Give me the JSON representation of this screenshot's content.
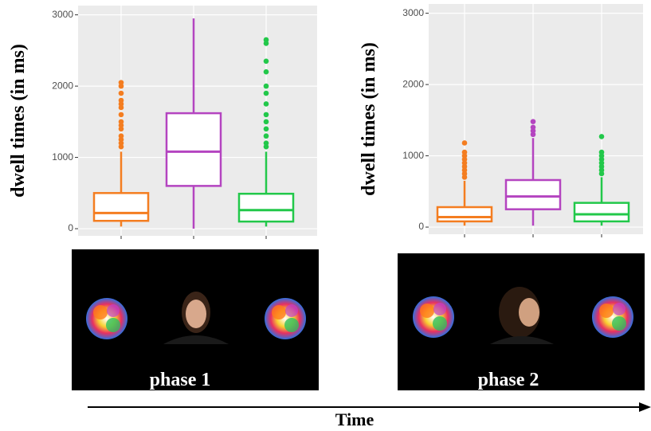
{
  "chart_data": [
    {
      "type": "box",
      "y_label": "dwell times (in ms)",
      "ylim": [
        -100,
        3130
      ],
      "yticks": [
        0,
        1000,
        2000,
        3000
      ],
      "grid": true,
      "categories": [
        null,
        null,
        null
      ],
      "caption": "phase 1",
      "boxes": [
        {
          "color": "#f47d20",
          "whisker_low": 30,
          "q1": 110,
          "median": 220,
          "q3": 500,
          "whisker_high": 1080,
          "outliers": [
            1150,
            1200,
            1250,
            1300,
            1400,
            1450,
            1500,
            1600,
            1700,
            1750,
            1800,
            1900,
            2000,
            2050
          ]
        },
        {
          "color": "#b444c0",
          "whisker_low": 0,
          "q1": 600,
          "median": 1080,
          "q3": 1620,
          "whisker_high": 2950,
          "outliers": []
        },
        {
          "color": "#22c84a",
          "whisker_low": 30,
          "q1": 100,
          "median": 260,
          "q3": 490,
          "whisker_high": 1080,
          "outliers": [
            1150,
            1200,
            1300,
            1400,
            1500,
            1600,
            1750,
            1900,
            2000,
            2200,
            2350,
            2600,
            2650
          ]
        }
      ]
    },
    {
      "type": "box",
      "y_label": "dwell times (in ms)",
      "ylim": [
        -100,
        3130
      ],
      "yticks": [
        0,
        1000,
        2000,
        3000
      ],
      "grid": true,
      "categories": [
        null,
        null,
        null
      ],
      "caption": "phase 2",
      "boxes": [
        {
          "color": "#f47d20",
          "whisker_low": 20,
          "q1": 80,
          "median": 140,
          "q3": 280,
          "whisker_high": 650,
          "outliers": [
            700,
            750,
            800,
            850,
            900,
            950,
            1000,
            1050,
            1180
          ]
        },
        {
          "color": "#b444c0",
          "whisker_low": 20,
          "q1": 250,
          "median": 430,
          "q3": 660,
          "whisker_high": 1250,
          "outliers": [
            1300,
            1350,
            1400,
            1480
          ]
        },
        {
          "color": "#22c84a",
          "whisker_low": 20,
          "q1": 80,
          "median": 180,
          "q3": 340,
          "whisker_high": 700,
          "outliers": [
            750,
            800,
            850,
            900,
            950,
            1000,
            1050,
            1270
          ]
        }
      ]
    }
  ],
  "timeline": {
    "label": "Time"
  }
}
